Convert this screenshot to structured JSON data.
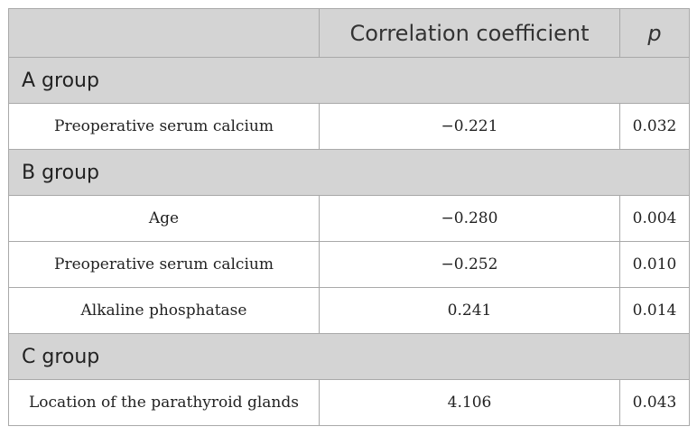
{
  "header": {
    "col_variable": "",
    "col_correlation": "Correlation coefficient",
    "col_p": "p"
  },
  "groups": [
    {
      "label": "A group",
      "rows": [
        {
          "variable": "Preoperative serum calcium",
          "correlation": "−0.221",
          "p": "0.032"
        }
      ]
    },
    {
      "label": "B group",
      "rows": [
        {
          "variable": "Age",
          "correlation": "−0.280",
          "p": "0.004"
        },
        {
          "variable": "Preoperative serum calcium",
          "correlation": "−0.252",
          "p": "0.010"
        },
        {
          "variable": "Alkaline phosphatase",
          "correlation": "0.241",
          "p": "0.014"
        }
      ]
    },
    {
      "label": "C group",
      "rows": [
        {
          "variable": "Location of the parathyroid glands",
          "correlation": "4.106",
          "p": "0.043"
        }
      ]
    }
  ]
}
